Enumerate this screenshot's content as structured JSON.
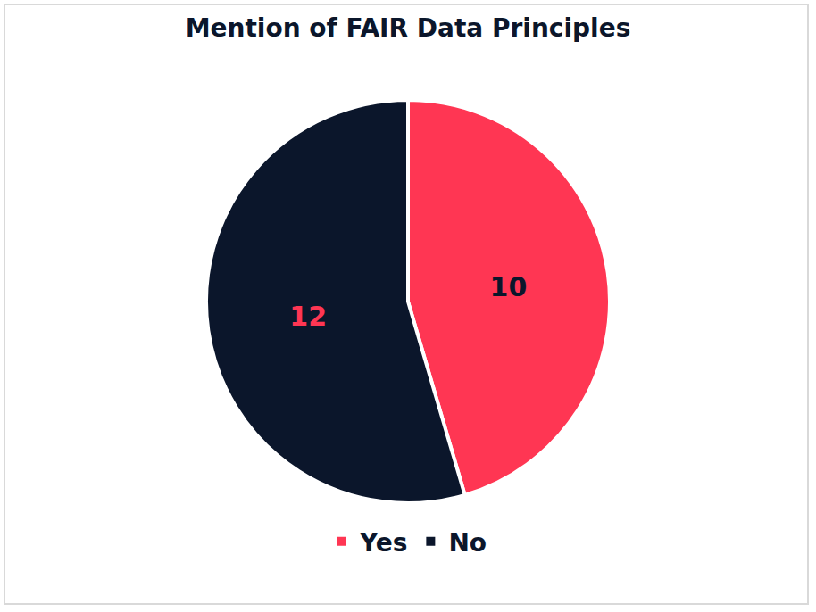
{
  "chart_data": {
    "type": "pie",
    "title": "Mention of FAIR Data Principles",
    "categories": [
      "Yes",
      "No"
    ],
    "values": [
      10,
      12
    ],
    "colors": [
      "#ff3653",
      "#0b162b"
    ],
    "data_labels": true,
    "legend": "bottom"
  }
}
